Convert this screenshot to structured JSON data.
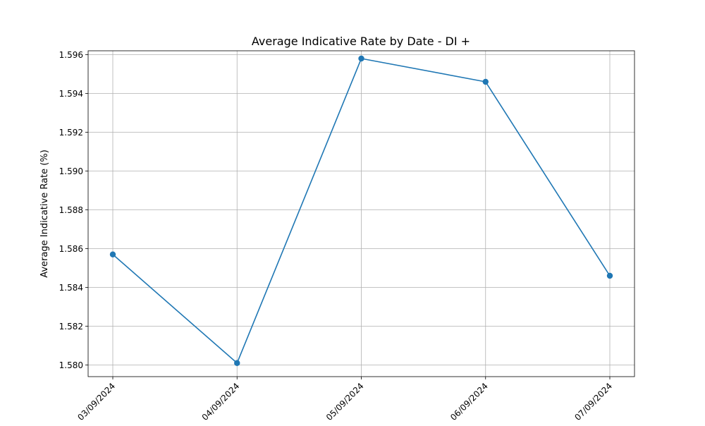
{
  "chart_data": {
    "type": "line",
    "title": "Average Indicative Rate by Date - DI +",
    "xlabel": "",
    "ylabel": "Average Indicative Rate (%)",
    "categories": [
      "03/09/2024",
      "04/09/2024",
      "05/09/2024",
      "06/09/2024",
      "07/09/2024"
    ],
    "series": [
      {
        "values": [
          1.5857,
          1.5801,
          1.5958,
          1.5946,
          1.5846
        ],
        "color": "#1f77b4",
        "marker": "circle"
      }
    ],
    "ylim": [
      1.5794,
      1.5962
    ],
    "yticks": [
      "1.580",
      "1.582",
      "1.584",
      "1.586",
      "1.588",
      "1.590",
      "1.592",
      "1.594",
      "1.596"
    ],
    "grid": true,
    "legend": "none"
  }
}
